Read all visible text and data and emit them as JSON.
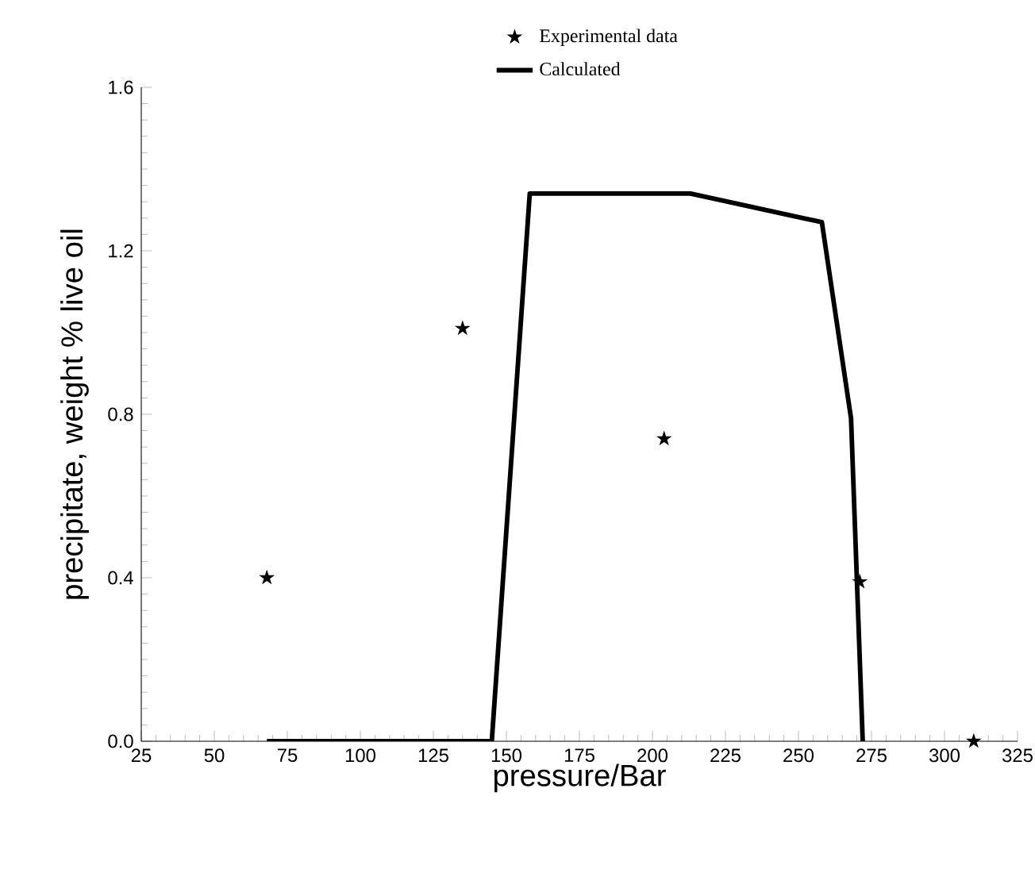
{
  "chart_data": {
    "type": "scatter",
    "xlabel": "pressure/Bar",
    "ylabel": "precipitate, weight % live oil",
    "xlim": [
      25,
      325
    ],
    "ylim": [
      0,
      1.6
    ],
    "xticks": [
      25,
      50,
      75,
      100,
      125,
      150,
      175,
      200,
      225,
      250,
      275,
      300,
      325
    ],
    "yticks": [
      {
        "value": 0,
        "label": "0.0"
      },
      {
        "value": 0.4,
        "label": "0.4"
      },
      {
        "value": 0.8,
        "label": "0.8"
      },
      {
        "value": 1.2,
        "label": "1.2"
      },
      {
        "value": 1.6,
        "label": "1.6"
      }
    ],
    "legend": "top",
    "grid": false,
    "series": [
      {
        "name": "Experimental data",
        "marker": "star",
        "color": "#000000",
        "x": [
          68,
          135,
          204,
          271,
          310
        ],
        "values": [
          0.4,
          1.01,
          0.74,
          0.39,
          0.0
        ]
      },
      {
        "name": "Calculated",
        "type": "line",
        "marker": "none",
        "line_style": "solid",
        "color": "#000000",
        "x": [
          68,
          145,
          158,
          213,
          258,
          268,
          272
        ],
        "values": [
          0.0,
          0.0,
          1.34,
          1.34,
          1.27,
          0.79,
          0.0
        ]
      }
    ]
  }
}
